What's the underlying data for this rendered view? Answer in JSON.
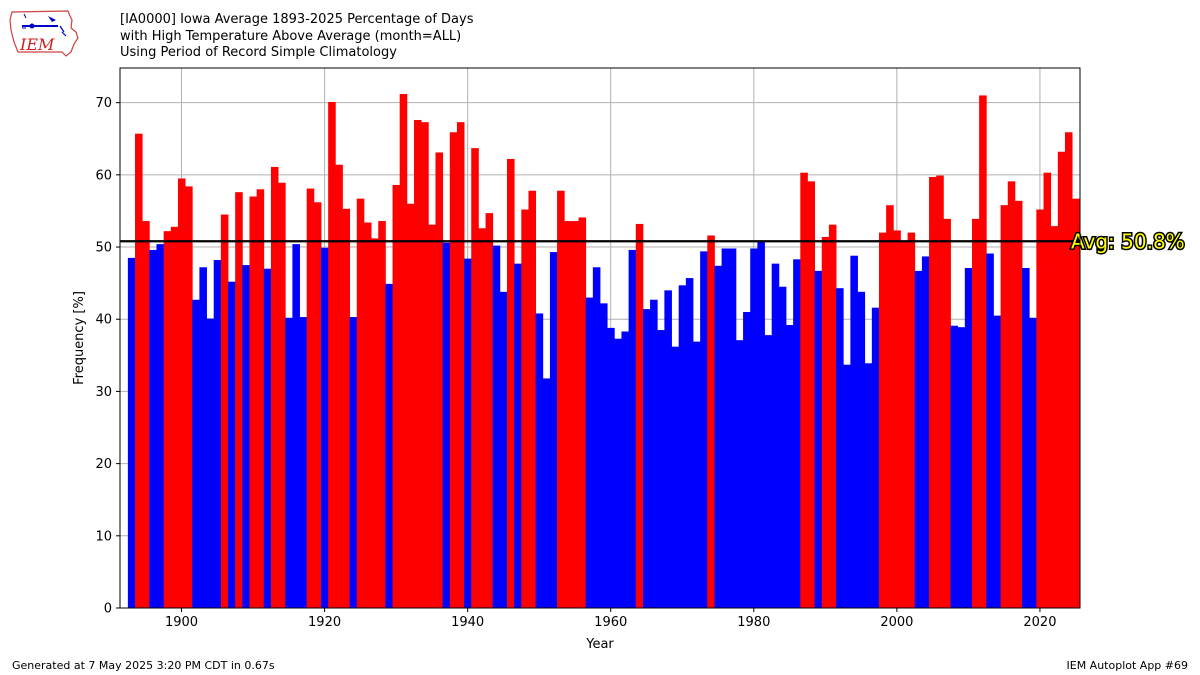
{
  "header": {
    "logo_text": "IEM",
    "title_lines": [
      "[IA0000] Iowa Average 1893-2025 Percentage of Days",
      "with High Temperature  Above Average (month=ALL)",
      "Using Period of Record Simple Climatology"
    ]
  },
  "footer": {
    "generated": "Generated at 7 May 2025 3:20 PM CDT in 0.67s",
    "app": "IEM Autoplot App #69"
  },
  "colors": {
    "above": "#ff0000",
    "below": "#0000ff",
    "avg_line": "#000000",
    "avg_label": "#ffff00",
    "grid": "#b0b0b0"
  },
  "chart_data": {
    "type": "bar",
    "xlabel": "Year",
    "ylabel": "Frequency [%]",
    "xlim": [
      1891.4,
      2025.6
    ],
    "ylim": [
      0,
      74.8
    ],
    "xticks": [
      1900,
      1920,
      1940,
      1960,
      1980,
      2000,
      2020
    ],
    "yticks": [
      0,
      10,
      20,
      30,
      40,
      50,
      60,
      70
    ],
    "grid": true,
    "average": 50.8,
    "average_label": "Avg: 50.8%",
    "x": [
      1893,
      1894,
      1895,
      1896,
      1897,
      1898,
      1899,
      1900,
      1901,
      1902,
      1903,
      1904,
      1905,
      1906,
      1907,
      1908,
      1909,
      1910,
      1911,
      1912,
      1913,
      1914,
      1915,
      1916,
      1917,
      1918,
      1919,
      1920,
      1921,
      1922,
      1923,
      1924,
      1925,
      1926,
      1927,
      1928,
      1929,
      1930,
      1931,
      1932,
      1933,
      1934,
      1935,
      1936,
      1937,
      1938,
      1939,
      1940,
      1941,
      1942,
      1943,
      1944,
      1945,
      1946,
      1947,
      1948,
      1949,
      1950,
      1951,
      1952,
      1953,
      1954,
      1955,
      1956,
      1957,
      1958,
      1959,
      1960,
      1961,
      1962,
      1963,
      1964,
      1965,
      1966,
      1967,
      1968,
      1969,
      1970,
      1971,
      1972,
      1973,
      1974,
      1975,
      1976,
      1977,
      1978,
      1979,
      1980,
      1981,
      1982,
      1983,
      1984,
      1985,
      1986,
      1987,
      1988,
      1989,
      1990,
      1991,
      1992,
      1993,
      1994,
      1995,
      1996,
      1997,
      1998,
      1999,
      2000,
      2001,
      2002,
      2003,
      2004,
      2005,
      2006,
      2007,
      2008,
      2009,
      2010,
      2011,
      2012,
      2013,
      2014,
      2015,
      2016,
      2017,
      2018,
      2019,
      2020,
      2021,
      2022,
      2023,
      2024,
      2025
    ],
    "values": [
      48.5,
      65.7,
      53.6,
      49.6,
      50.4,
      52.2,
      52.8,
      59.5,
      58.4,
      42.7,
      47.2,
      40.1,
      48.2,
      54.5,
      45.2,
      57.6,
      47.5,
      57.0,
      58.0,
      47.0,
      61.1,
      58.9,
      40.2,
      50.4,
      40.3,
      58.1,
      56.2,
      49.9,
      70.1,
      61.4,
      55.3,
      40.3,
      56.7,
      53.4,
      51.2,
      53.6,
      44.9,
      58.6,
      71.2,
      56.0,
      67.6,
      67.3,
      53.1,
      63.1,
      50.6,
      65.9,
      67.3,
      48.4,
      63.7,
      52.6,
      54.7,
      50.2,
      43.8,
      62.2,
      47.7,
      55.2,
      57.8,
      40.8,
      31.8,
      49.3,
      57.8,
      53.6,
      53.6,
      54.1,
      43.0,
      47.2,
      42.2,
      38.8,
      37.3,
      38.3,
      49.6,
      53.2,
      41.4,
      42.7,
      38.5,
      44.0,
      36.2,
      44.7,
      45.7,
      36.9,
      49.4,
      51.6,
      47.4,
      49.8,
      49.8,
      37.1,
      41.0,
      49.8,
      50.7,
      37.8,
      47.7,
      44.5,
      39.2,
      48.3,
      60.3,
      59.1,
      46.7,
      51.4,
      53.1,
      44.3,
      33.7,
      48.8,
      43.8,
      33.9,
      41.6,
      52.0,
      55.8,
      52.3,
      50.8,
      52.0,
      46.7,
      48.7,
      59.7,
      59.9,
      53.9,
      39.1,
      38.9,
      47.1,
      53.9,
      71.0,
      49.1,
      40.5,
      55.8,
      59.1,
      56.4,
      47.1,
      40.2,
      55.2,
      60.3,
      52.9,
      63.2,
      65.9,
      56.7
    ]
  }
}
